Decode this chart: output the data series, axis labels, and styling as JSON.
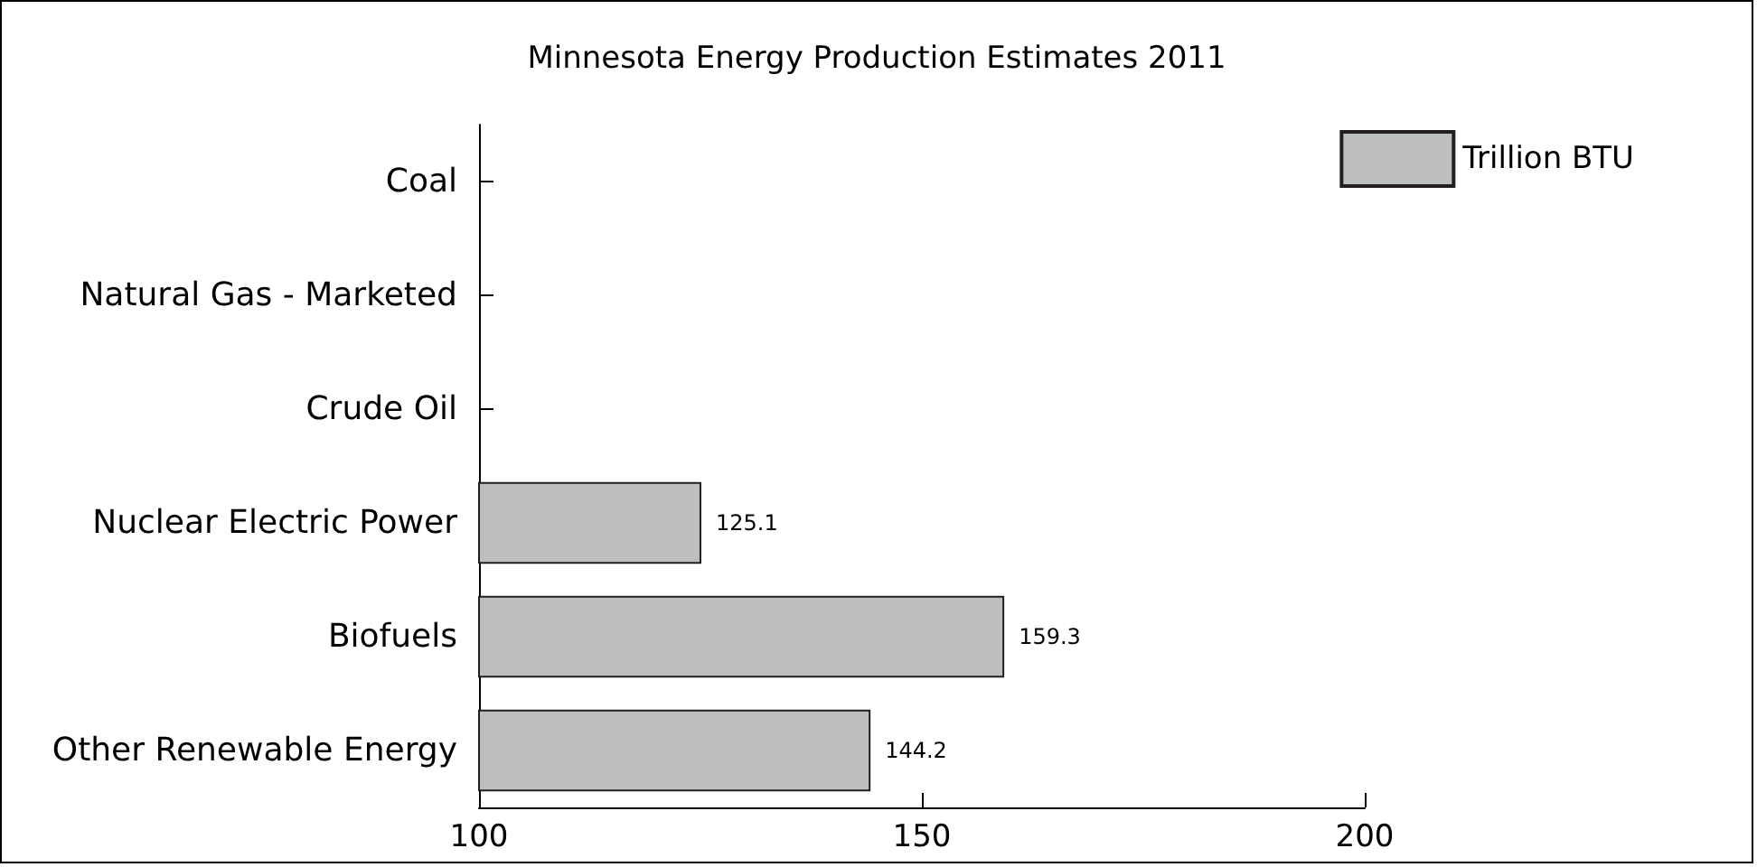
{
  "chart_data": {
    "type": "bar",
    "orientation": "horizontal",
    "title": "Minnesota Energy Production Estimates 2011",
    "categories": [
      "Coal",
      "Natural Gas - Marketed",
      "Crude Oil",
      "Nuclear Electric Power",
      "Biofuels",
      "Other Renewable Energy"
    ],
    "series": [
      {
        "name": "Trillion BTU",
        "color": "#bcbec0",
        "values": [
          null,
          null,
          null,
          125.1,
          159.3,
          144.2
        ]
      }
    ],
    "xlim": [
      100,
      200
    ],
    "xticks": [
      100,
      150,
      200
    ],
    "data_labels": true,
    "legend": "top right",
    "grid": false
  }
}
